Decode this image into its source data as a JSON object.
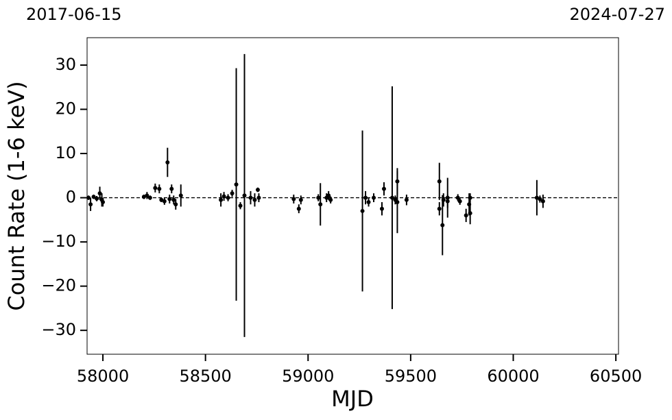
{
  "chart_data": {
    "type": "errorbar",
    "top_labels": [
      "2017-06-15",
      "2024-07-27"
    ],
    "xlabel": "MJD",
    "ylabel": "Count Rate (1-6 keV)",
    "xlim": [
      57923,
      60513
    ],
    "ylim": [
      -35.4,
      36.2
    ],
    "xticks": [
      58000,
      58500,
      59000,
      59500,
      60000,
      60500
    ],
    "yticks": [
      {
        "value": -30,
        "label": "−30"
      },
      {
        "value": -20,
        "label": "−20"
      },
      {
        "value": -10,
        "label": "−10"
      },
      0,
      10,
      20,
      30
    ],
    "hline": 0,
    "color": "#000000",
    "series": [
      {
        "name": "Count Rate",
        "x": [
          57930,
          57940,
          57955,
          57970,
          57985,
          57995,
          58000,
          58200,
          58215,
          58230,
          58255,
          58275,
          58285,
          58300,
          58315,
          58325,
          58335,
          58345,
          58355,
          58380,
          58575,
          58590,
          58610,
          58630,
          58650,
          58670,
          58690,
          58720,
          58740,
          58755,
          58760,
          58930,
          58955,
          58965,
          59050,
          59060,
          59090,
          59100,
          59110,
          59265,
          59280,
          59295,
          59320,
          59360,
          59370,
          59410,
          59425,
          59435,
          59435,
          59480,
          59640,
          59640,
          59655,
          59660,
          59680,
          59680,
          59730,
          59740,
          59770,
          59785,
          59790,
          59790,
          60115,
          60130,
          60145
        ],
        "values": [
          0,
          -1.5,
          0.2,
          -0.2,
          1,
          -0.5,
          -1,
          0.2,
          0.5,
          0,
          2.2,
          2,
          -0.5,
          -0.8,
          8,
          -0.3,
          2,
          -0.5,
          -1.5,
          0.5,
          -0.5,
          0.3,
          0,
          1,
          3,
          -1.8,
          0.5,
          0,
          -0.5,
          1.8,
          0,
          -0.3,
          -2.5,
          -0.5,
          0,
          -1.5,
          0,
          0.5,
          -0.5,
          -3,
          0,
          -1,
          0,
          -2.5,
          2,
          0,
          -0.5,
          3.7,
          -1,
          -0.5,
          3.7,
          -2.5,
          -6.2,
          -0.5,
          0,
          -0.8,
          0,
          -0.8,
          -4,
          -1.5,
          -3.5,
          0,
          0,
          -0.3,
          -0.8
        ],
        "errors": [
          0.5,
          1.5,
          0.5,
          0.6,
          1.5,
          1.5,
          1,
          0.5,
          0.8,
          0.5,
          1,
          1,
          0.5,
          0.8,
          3.3,
          1,
          1,
          1,
          1.2,
          2.5,
          1.5,
          1,
          0.8,
          0.8,
          26.3,
          0.8,
          32,
          1.5,
          1.5,
          0.5,
          1,
          1,
          1,
          1,
          0.8,
          4.8,
          1,
          1,
          0.8,
          18.2,
          1.5,
          1,
          1,
          1.5,
          1.5,
          25.2,
          1,
          3,
          7,
          1.2,
          4.2,
          1.5,
          6.8,
          1.5,
          4.5,
          1.5,
          0.8,
          0.8,
          1.5,
          2.5,
          2.5,
          1,
          4,
          0.8,
          1.5
        ]
      }
    ]
  }
}
